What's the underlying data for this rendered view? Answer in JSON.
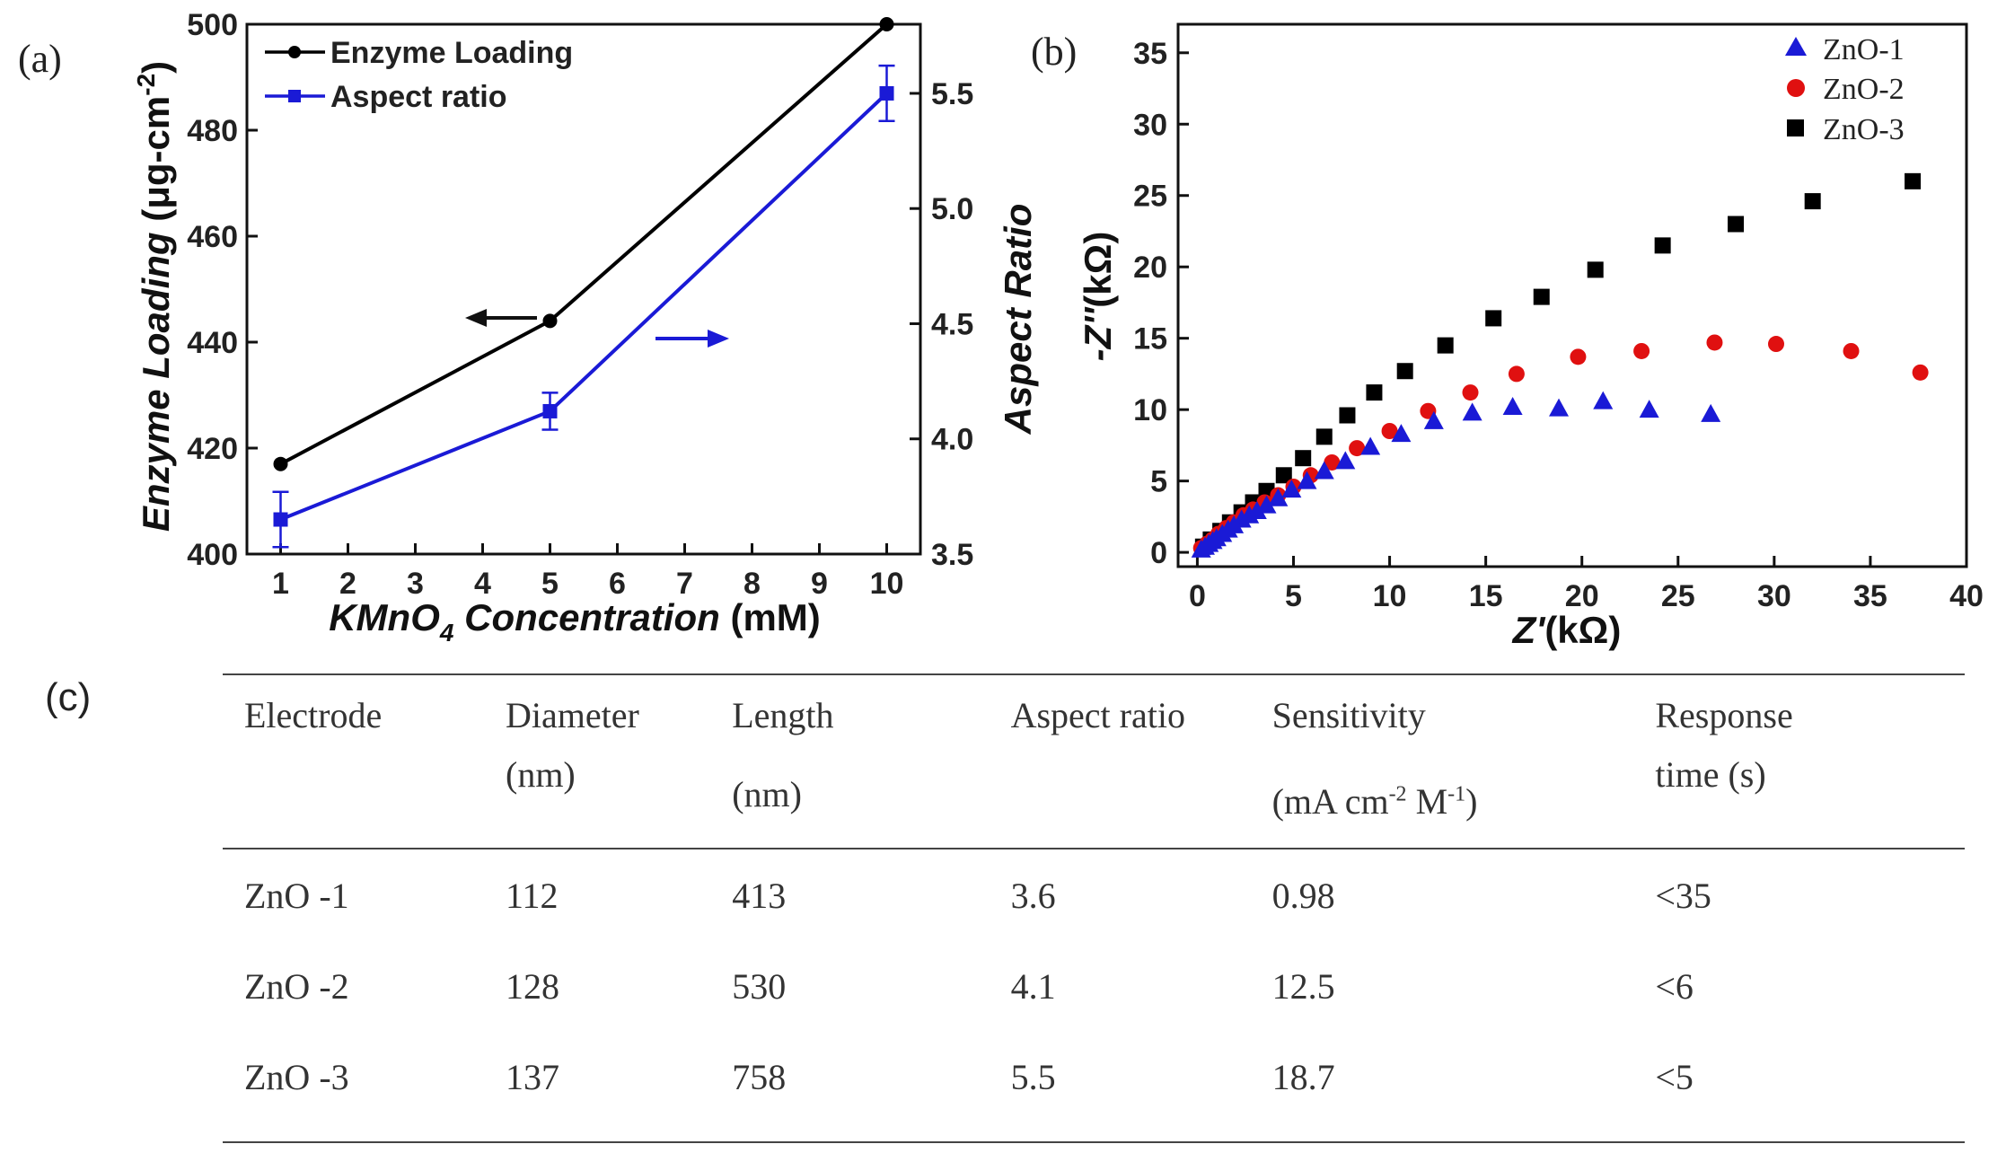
{
  "panel_labels": {
    "a": "(a)",
    "b": "(b)",
    "c": "(c)"
  },
  "chart_data": [
    {
      "type": "line",
      "xlabel_main": "KMnO",
      "xlabel_sub": "4",
      "xlabel_rest": " Concentration",
      "xlabel_unit": " (mM)",
      "ylabel_left_main": "Enzyme Loading",
      "ylabel_left_unit": " (μg-cm",
      "ylabel_left_sup": "-2",
      "ylabel_left_close": ")",
      "ylabel_right": "Aspect Ratio",
      "xlim": [
        0.5,
        10.5
      ],
      "ylim_left": [
        400,
        500
      ],
      "ylim_right": [
        3.5,
        5.8
      ],
      "x_ticks": [
        1,
        2,
        3,
        4,
        5,
        6,
        7,
        8,
        9,
        10
      ],
      "y_left_ticks": [
        400,
        420,
        440,
        460,
        480,
        500
      ],
      "y_right_ticks": [
        3.5,
        4.0,
        4.5,
        5.0,
        5.5
      ],
      "series": [
        {
          "name": "Enzyme Loading",
          "axis": "left",
          "color": "#000000",
          "marker": "circle",
          "x": [
            1,
            5,
            10
          ],
          "y": [
            417,
            444,
            500
          ]
        },
        {
          "name": "Aspect ratio",
          "axis": "right",
          "color": "#1a1ad6",
          "marker": "square",
          "x": [
            1,
            5,
            10
          ],
          "y": [
            3.65,
            4.12,
            5.5
          ],
          "error": [
            0.12,
            0.08,
            0.12
          ]
        }
      ],
      "legend_position": "top-left"
    },
    {
      "type": "scatter",
      "xlabel_main": "Z'",
      "xlabel_unit": "(kΩ)",
      "ylabel_main": "-Z''",
      "ylabel_unit": "(kΩ)",
      "xlim": [
        -1,
        40
      ],
      "ylim": [
        -1,
        37
      ],
      "x_ticks": [
        0,
        5,
        10,
        15,
        20,
        25,
        30,
        35,
        40
      ],
      "y_ticks": [
        0,
        5,
        10,
        15,
        20,
        25,
        30,
        35
      ],
      "legend_position": "top-right",
      "series": [
        {
          "name": "ZnO-1",
          "color": "#1a1ad6",
          "marker": "triangle",
          "x": [
            0.2,
            0.4,
            0.6,
            0.8,
            1.0,
            1.3,
            1.6,
            1.9,
            2.3,
            2.7,
            3.1,
            3.6,
            4.2,
            4.9,
            5.7,
            6.6,
            7.7,
            9.0,
            10.6,
            12.3,
            14.3,
            16.4,
            18.8,
            21.1,
            23.5,
            26.7
          ],
          "y": [
            0.2,
            0.4,
            0.6,
            0.8,
            1.0,
            1.3,
            1.6,
            1.9,
            2.3,
            2.6,
            2.9,
            3.3,
            3.8,
            4.4,
            5.0,
            5.7,
            6.4,
            7.4,
            8.3,
            9.2,
            9.8,
            10.2,
            10.1,
            10.6,
            10.0,
            9.7
          ]
        },
        {
          "name": "ZnO-2",
          "color": "#e01010",
          "marker": "circle",
          "x": [
            0.2,
            0.5,
            0.8,
            1.1,
            1.5,
            1.9,
            2.4,
            2.9,
            3.5,
            4.2,
            5.0,
            5.9,
            7.0,
            8.3,
            10.0,
            12.0,
            14.2,
            16.6,
            19.8,
            23.1,
            26.9,
            30.1,
            34.0,
            37.6
          ],
          "y": [
            0.3,
            0.6,
            0.9,
            1.3,
            1.7,
            2.1,
            2.6,
            3.0,
            3.5,
            4.0,
            4.6,
            5.4,
            6.3,
            7.3,
            8.5,
            9.9,
            11.2,
            12.5,
            13.7,
            14.1,
            14.7,
            14.6,
            14.1,
            12.6
          ]
        },
        {
          "name": "ZnO-3",
          "color": "#000000",
          "marker": "square",
          "x": [
            0.3,
            0.7,
            1.2,
            1.7,
            2.3,
            2.9,
            3.6,
            4.5,
            5.5,
            6.6,
            7.8,
            9.2,
            10.8,
            12.9,
            15.4,
            17.9,
            20.7,
            24.2,
            28.0,
            32.0,
            37.2
          ],
          "y": [
            0.4,
            0.9,
            1.5,
            2.1,
            2.8,
            3.5,
            4.3,
            5.4,
            6.6,
            8.1,
            9.6,
            11.2,
            12.7,
            14.5,
            16.4,
            17.9,
            19.8,
            21.5,
            23.0,
            24.6,
            26.0
          ]
        }
      ]
    }
  ],
  "table": {
    "headers": [
      {
        "line1": "Electrode",
        "line2": ""
      },
      {
        "line1": "Diameter",
        "line2": "(nm)"
      },
      {
        "line1": "Length",
        "line2": "(nm)"
      },
      {
        "line1": "Aspect ratio",
        "line2": ""
      },
      {
        "line1": "Sensitivity",
        "line2_pre": "(mA cm",
        "line2_sup1": "-2",
        "line2_mid": " M",
        "line2_sup2": "-1",
        "line2_post": ")"
      },
      {
        "line1": "Response",
        "line2": "time (s)"
      }
    ],
    "rows": [
      [
        "ZnO -1",
        "112",
        "413",
        "3.6",
        "0.98",
        "<35"
      ],
      [
        "ZnO -2",
        "128",
        "530",
        "4.1",
        "12.5",
        "<6"
      ],
      [
        "ZnO -3",
        "137",
        "758",
        "5.5",
        "18.7",
        "<5"
      ]
    ]
  }
}
